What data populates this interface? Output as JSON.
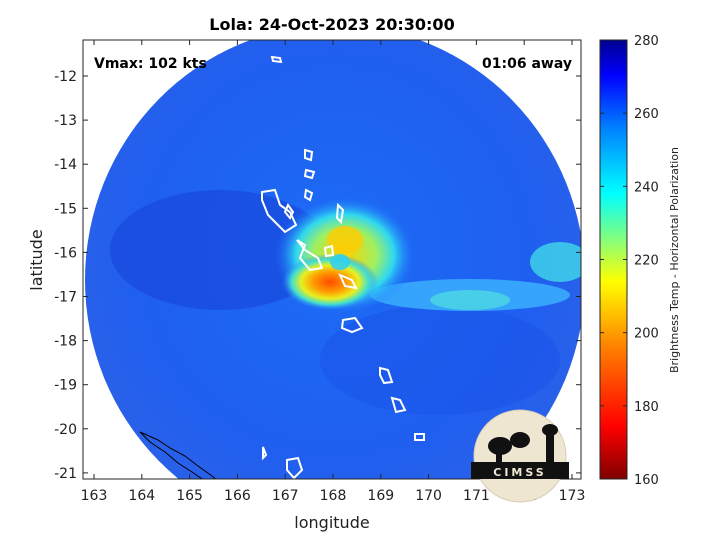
{
  "title": "Lola: 24-Oct-2023 20:30:00",
  "vmax_text": "Vmax: 102 kts",
  "time_away_text": "01:06 away",
  "xlabel": "longitude",
  "ylabel": "latitude",
  "x_ticks": [
    "163",
    "164",
    "165",
    "166",
    "167",
    "168",
    "169",
    "170",
    "171",
    "172",
    "173"
  ],
  "y_ticks": [
    "-12",
    "-13",
    "-14",
    "-15",
    "-16",
    "-17",
    "-18",
    "-19",
    "-20",
    "-21"
  ],
  "colorbar": {
    "label": "Brightness Temp - Horizontal Polarization",
    "ticks": [
      "280",
      "260",
      "240",
      "220",
      "200",
      "180",
      "160"
    ],
    "colormap": "jet",
    "range": [
      160,
      280
    ]
  },
  "logo_text": "CIMSS",
  "colors": {
    "background_scene": "#1f5ff0",
    "warm_core": "#ff6a00",
    "ring": "#33e0e8",
    "coastline": "#ffffff"
  },
  "chart_data": {
    "type": "heatmap",
    "title": "Lola: 24-Oct-2023 20:30:00",
    "xlabel": "longitude",
    "ylabel": "latitude",
    "xlim": [
      162.8,
      173.2
    ],
    "ylim": [
      -21.2,
      -11.4
    ],
    "colorbar_range": [
      160,
      280
    ],
    "storm_center": {
      "lon": 168.0,
      "lat": -16.5
    },
    "min_brightness_temp_approx": 185
  }
}
